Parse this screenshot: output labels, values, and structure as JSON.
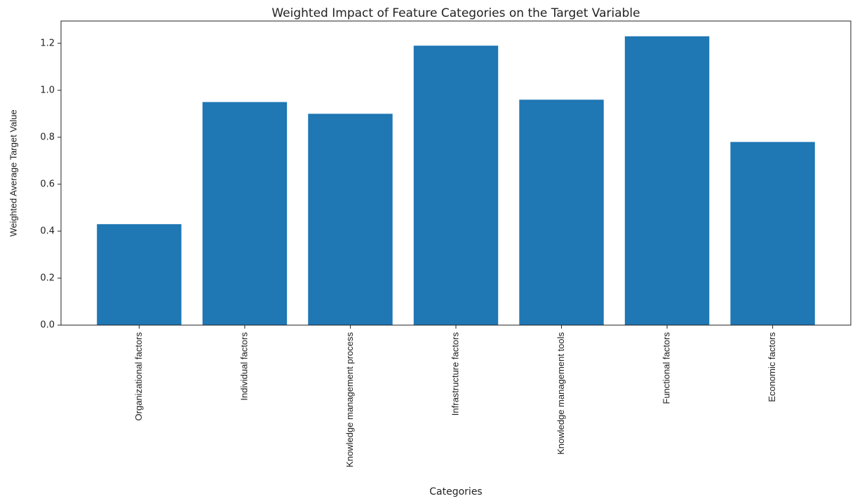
{
  "chart_data": {
    "type": "bar",
    "title": "Weighted Impact of Feature Categories on the Target Variable",
    "x_label": "Categories",
    "y_label": "Weighted Average Target Value",
    "categories": [
      "Organizational factors",
      "Individual factors",
      "Knowledge management process",
      "Infrastructure factors",
      "Knowledge management tools",
      "Functional factors",
      "Economic factors"
    ],
    "values": [
      0.43,
      0.95,
      0.9,
      1.19,
      0.96,
      1.23,
      0.78
    ],
    "color": "#1f77b4",
    "ylim": [
      0,
      1.295
    ],
    "yticks": [
      {
        "value": 0,
        "label": "0.0"
      },
      0.2,
      0.4,
      0.6,
      0.8,
      {
        "value": 1,
        "label": "1.0"
      },
      1.2
    ],
    "grid": false
  }
}
